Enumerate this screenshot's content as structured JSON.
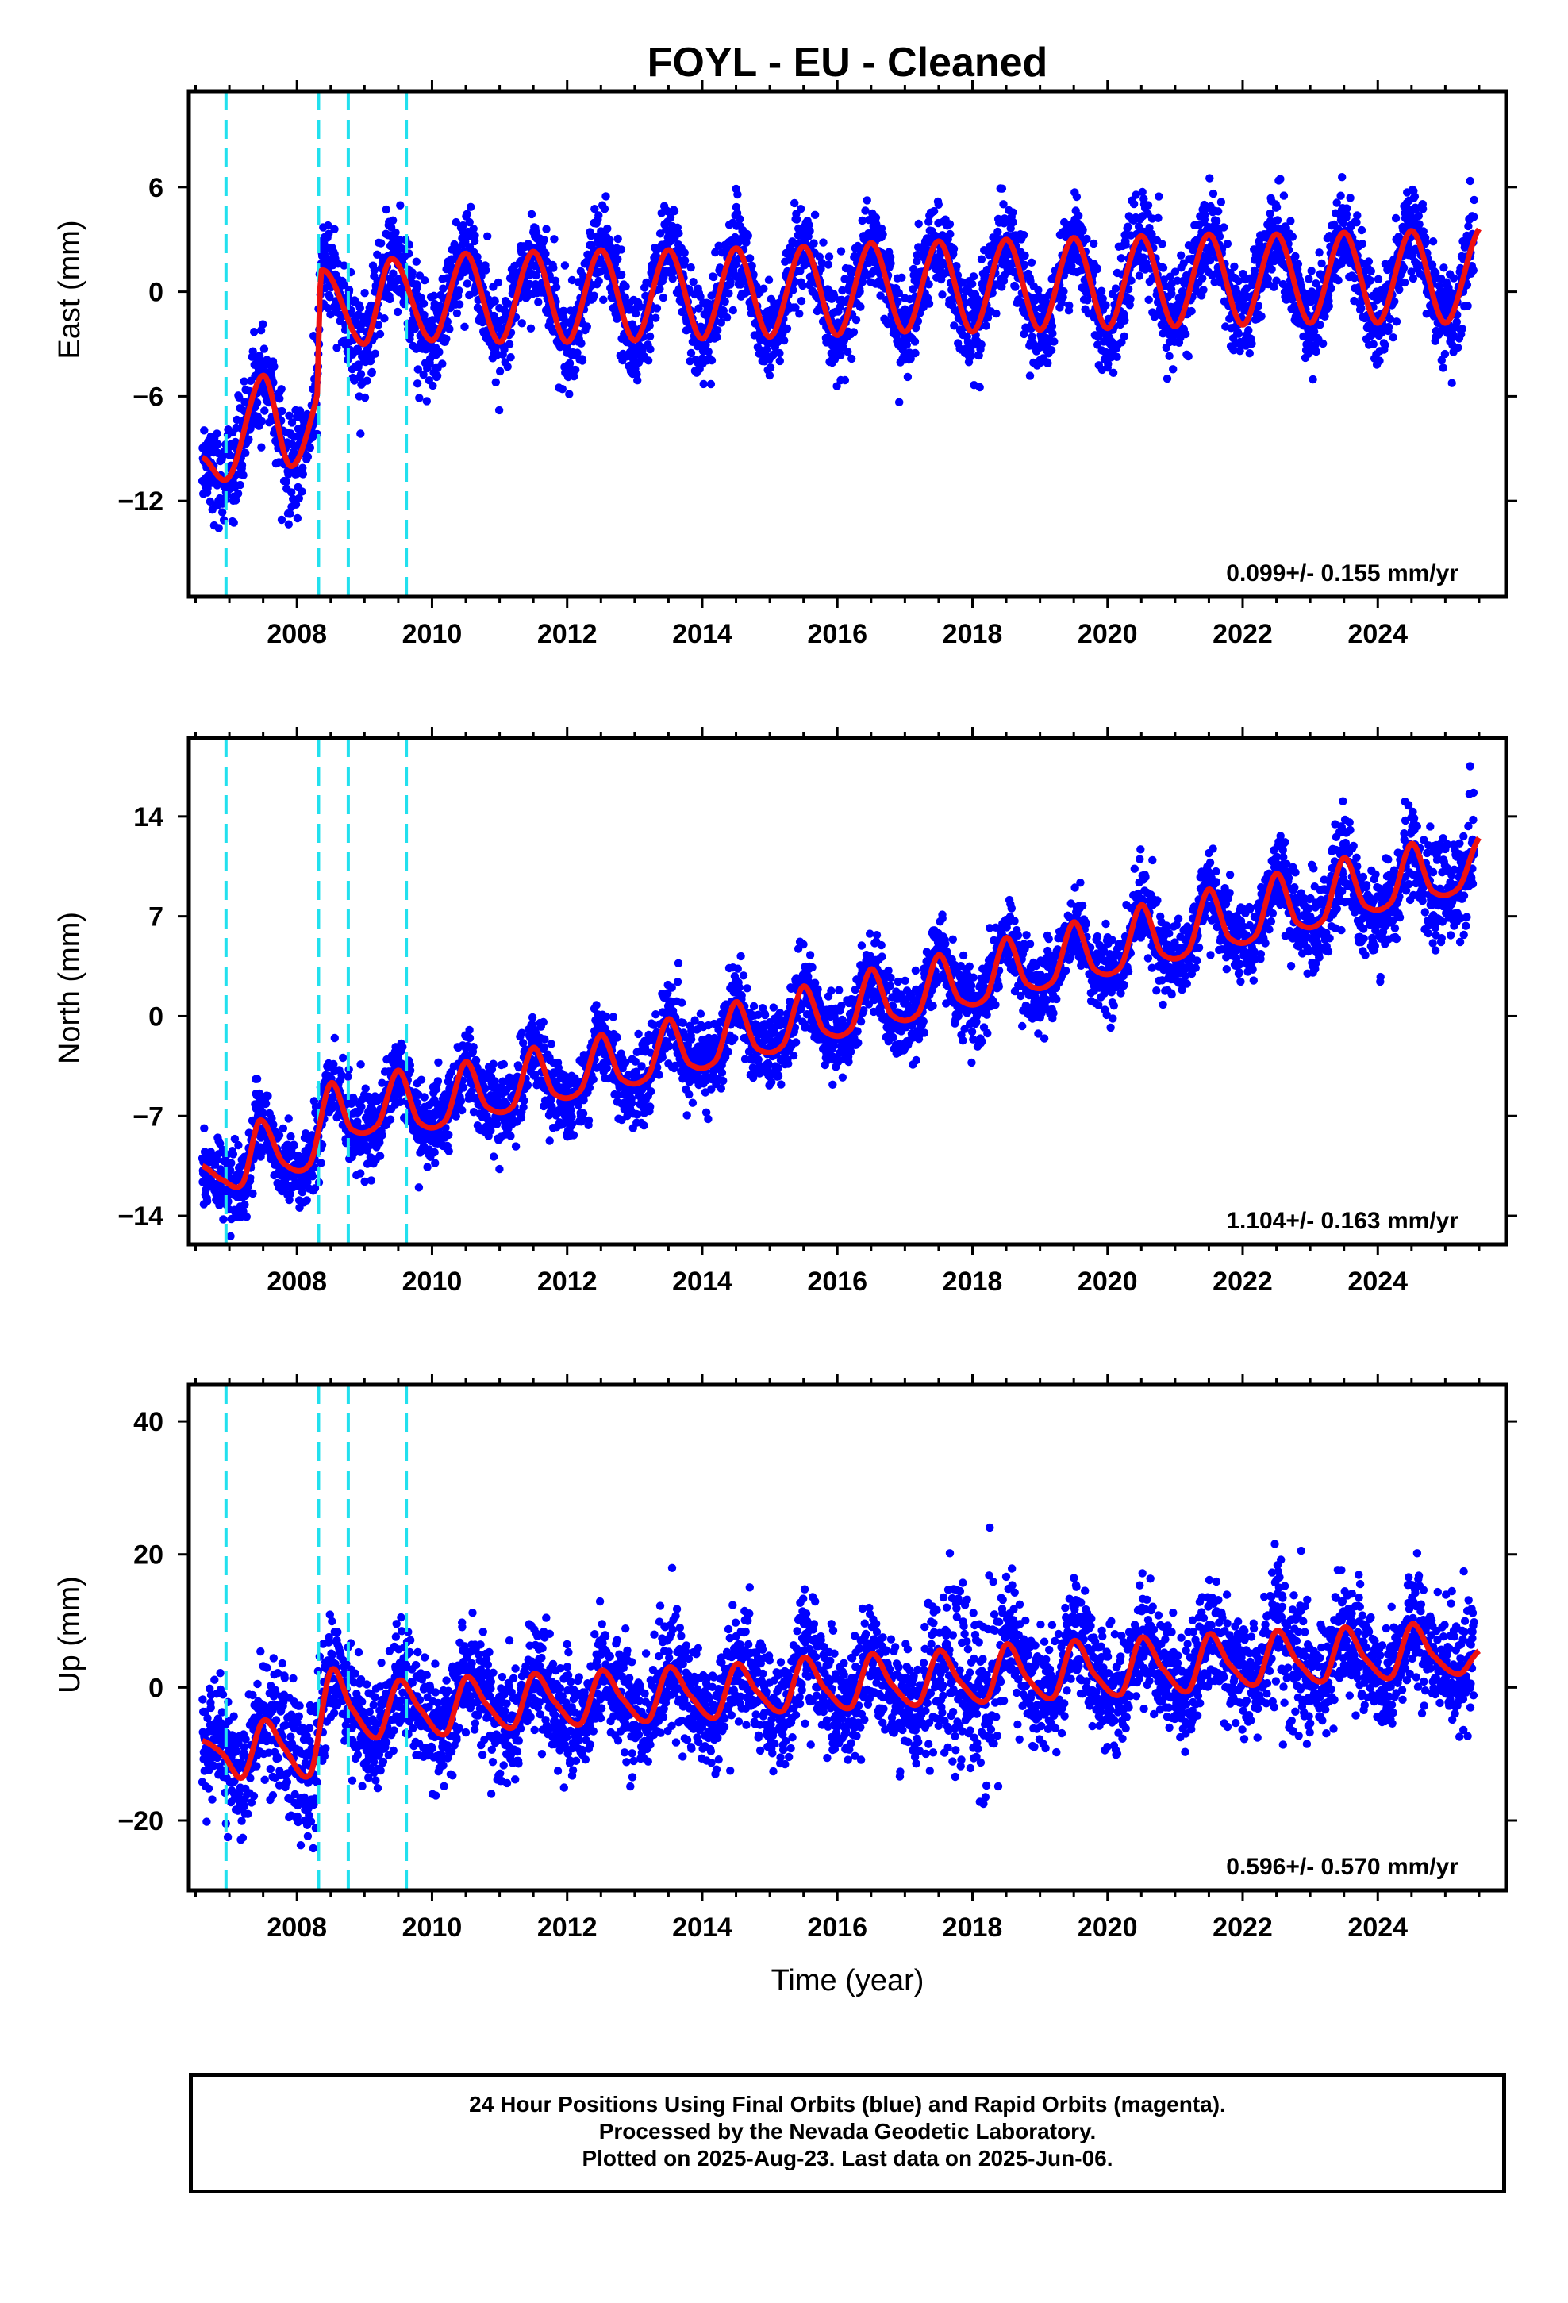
{
  "title": "FOYL  - EU - Cleaned",
  "footer": {
    "line1": "24 Hour Positions Using Final Orbits (blue) and Rapid Orbits (magenta).",
    "line2": "Processed by the Nevada Geodetic Laboratory.",
    "line3": "Plotted on 2025-Aug-23. Last data on 2025-Jun-06."
  },
  "colors": {
    "points": "#0000ff",
    "model": "#ee1111",
    "steps": "#22e0ee",
    "frame": "#000000"
  },
  "chart_data": [
    {
      "type": "scatter",
      "ylabel": "East (mm)",
      "xlim": [
        2006.4,
        2025.9
      ],
      "ylim": [
        -17.5,
        11.5
      ],
      "yticks": [
        -12,
        -6,
        0,
        6
      ],
      "xticks": [
        2008,
        2010,
        2012,
        2014,
        2016,
        2018,
        2020,
        2022,
        2024
      ],
      "grid": false,
      "rate_text": "0.099+/- 0.155 mm/yr",
      "steps": [
        2006.95,
        2008.32,
        2008.76,
        2009.62
      ],
      "data_start": 2006.6,
      "data_end": 2025.43,
      "model_end": 2025.5,
      "series": [
        {
          "role": "model",
          "x": [
            2006.6,
            2007.0,
            2007.5,
            2007.9,
            2008.3,
            2008.35,
            2009.0,
            2009.4,
            2010.0,
            2010.5,
            2011.0,
            2011.5,
            2012.0,
            2012.5,
            2013.0,
            2013.5,
            2014.0,
            2014.5,
            2015.0,
            2015.5,
            2016.0,
            2016.5,
            2017.0,
            2017.5,
            2018.0,
            2018.5,
            2019.0,
            2019.5,
            2020.0,
            2020.5,
            2021.0,
            2021.5,
            2022.0,
            2022.5,
            2023.0,
            2023.5,
            2024.0,
            2024.5,
            2025.0,
            2025.5
          ],
          "y": [
            -9.5,
            -10.6,
            -4.8,
            -10.0,
            -6.0,
            1.2,
            -3.0,
            1.9,
            -2.8,
            2.2,
            -2.9,
            2.3,
            -2.9,
            2.4,
            -2.8,
            2.4,
            -2.7,
            2.5,
            -2.6,
            2.6,
            -2.5,
            2.8,
            -2.3,
            2.9,
            -2.3,
            3.0,
            -2.2,
            3.1,
            -2.1,
            3.2,
            -2.0,
            3.3,
            -1.9,
            3.3,
            -1.8,
            3.4,
            -1.8,
            3.5,
            -1.8,
            3.6
          ]
        }
      ]
    },
    {
      "type": "scatter",
      "ylabel": "North (mm)",
      "xlim": [
        2006.4,
        2025.9
      ],
      "ylim": [
        -16.0,
        19.5
      ],
      "yticks": [
        -14,
        -7,
        0,
        7,
        14
      ],
      "xticks": [
        2008,
        2010,
        2012,
        2014,
        2016,
        2018,
        2020,
        2022,
        2024
      ],
      "grid": false,
      "rate_text": "1.104+/- 0.163 mm/yr",
      "steps": [
        2006.95,
        2008.32,
        2008.76,
        2009.62
      ],
      "data_start": 2006.6,
      "data_end": 2025.43,
      "model_end": 2025.5,
      "series": [
        {
          "role": "model",
          "x": [
            2006.6,
            2006.9,
            2007.2,
            2007.45,
            2007.8,
            2008.2,
            2008.5,
            2008.8,
            2009.2,
            2009.5,
            2009.8,
            2010.2,
            2010.5,
            2010.8,
            2011.2,
            2011.5,
            2011.8,
            2012.2,
            2012.5,
            2012.8,
            2013.2,
            2013.5,
            2013.8,
            2014.2,
            2014.5,
            2014.8,
            2015.2,
            2015.5,
            2015.8,
            2016.2,
            2016.5,
            2016.8,
            2017.2,
            2017.5,
            2017.8,
            2018.2,
            2018.5,
            2018.8,
            2019.2,
            2019.5,
            2019.8,
            2020.2,
            2020.5,
            2020.8,
            2021.2,
            2021.5,
            2021.8,
            2022.2,
            2022.5,
            2022.8,
            2023.2,
            2023.5,
            2023.8,
            2024.2,
            2024.5,
            2024.8,
            2025.2,
            2025.5
          ],
          "y": [
            -10.5,
            -11.5,
            -11.7,
            -7.3,
            -10.3,
            -10.3,
            -4.7,
            -7.9,
            -7.6,
            -3.8,
            -7.4,
            -7.3,
            -3.2,
            -6.3,
            -6.3,
            -2.2,
            -5.4,
            -5.2,
            -1.3,
            -4.4,
            -4.2,
            -0.2,
            -3.3,
            -3.1,
            1.0,
            -2.2,
            -2.0,
            2.1,
            -1.0,
            -0.9,
            3.3,
            0.1,
            0.2,
            4.3,
            1.2,
            1.3,
            5.5,
            2.3,
            2.5,
            6.6,
            3.3,
            3.5,
            7.8,
            4.4,
            4.6,
            8.9,
            5.5,
            5.7,
            10.0,
            6.6,
            6.8,
            11.1,
            7.8,
            8.0,
            12.1,
            8.8,
            9.0,
            12.5
          ]
        }
      ]
    },
    {
      "type": "scatter",
      "ylabel": "Up (mm)",
      "xlabel": "Time (year)",
      "xlim": [
        2006.4,
        2025.9
      ],
      "ylim": [
        -30.5,
        45.5
      ],
      "yticks": [
        -20,
        0,
        20,
        40
      ],
      "xticks": [
        2008,
        2010,
        2012,
        2014,
        2016,
        2018,
        2020,
        2022,
        2024
      ],
      "grid": false,
      "rate_text": "0.596+/- 0.570 mm/yr",
      "steps": [
        2006.95,
        2008.32,
        2008.76,
        2009.62
      ],
      "data_start": 2006.6,
      "data_end": 2025.43,
      "model_end": 2025.5,
      "series": [
        {
          "role": "model",
          "x": [
            2006.6,
            2006.9,
            2007.2,
            2007.5,
            2007.8,
            2008.2,
            2008.5,
            2008.8,
            2009.2,
            2009.5,
            2009.8,
            2010.2,
            2010.5,
            2010.8,
            2011.2,
            2011.5,
            2011.8,
            2012.2,
            2012.5,
            2012.8,
            2013.2,
            2013.5,
            2013.8,
            2014.2,
            2014.5,
            2014.8,
            2015.2,
            2015.5,
            2015.8,
            2016.2,
            2016.5,
            2016.8,
            2017.2,
            2017.5,
            2017.8,
            2018.2,
            2018.5,
            2018.8,
            2019.2,
            2019.5,
            2019.8,
            2020.2,
            2020.5,
            2020.8,
            2021.2,
            2021.5,
            2021.8,
            2022.2,
            2022.5,
            2022.8,
            2023.2,
            2023.5,
            2023.8,
            2024.2,
            2024.5,
            2024.8,
            2025.2,
            2025.5
          ],
          "y": [
            -8.0,
            -10.0,
            -13.5,
            -5.0,
            -9.0,
            -13.0,
            2.5,
            -3.0,
            -7.5,
            1.0,
            -3.0,
            -7.0,
            1.5,
            -2.5,
            -6.0,
            2.0,
            -2.0,
            -5.5,
            2.5,
            -1.5,
            -5.0,
            3.0,
            -1.0,
            -4.5,
            3.5,
            -0.5,
            -3.5,
            4.5,
            0.0,
            -3.0,
            5.0,
            0.5,
            -2.5,
            5.5,
            1.0,
            -2.0,
            6.5,
            1.5,
            -1.5,
            7.0,
            2.0,
            -1.0,
            7.5,
            3.0,
            -0.5,
            8.0,
            3.5,
            0.5,
            8.5,
            4.0,
            1.0,
            9.0,
            4.5,
            1.5,
            9.5,
            5.0,
            2.0,
            5.5
          ]
        }
      ]
    }
  ]
}
